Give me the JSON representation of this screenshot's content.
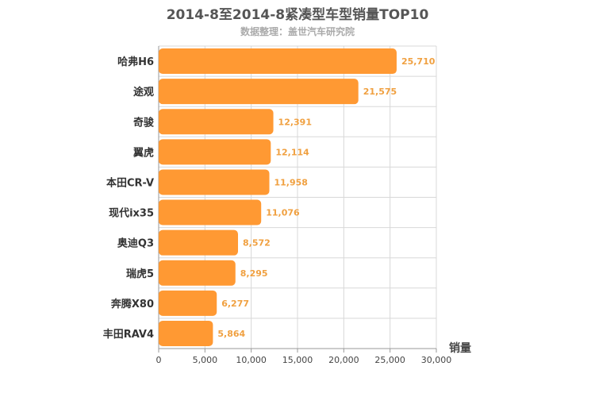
{
  "chart_data": {
    "type": "bar",
    "orientation": "horizontal",
    "title": "2014-8至2014-8紧凑型车型销量TOP10",
    "subtitle": "数据整理：盖世汽车研究院",
    "xlabel": "销量",
    "ylabel": "",
    "categories": [
      "哈弗H6",
      "途观",
      "奇骏",
      "翼虎",
      "本田CR-V",
      "现代ix35",
      "奥迪Q3",
      "瑞虎5",
      "奔腾X80",
      "丰田RAV4"
    ],
    "values": [
      25710,
      21575,
      12391,
      12114,
      11958,
      11076,
      8572,
      8295,
      6277,
      5864
    ],
    "value_labels": [
      "25,710",
      "21,575",
      "12,391",
      "12,114",
      "11,958",
      "11,076",
      "8,572",
      "8,295",
      "6,277",
      "5,864"
    ],
    "xlim": [
      0,
      30000
    ],
    "xticks": [
      0,
      5000,
      10000,
      15000,
      20000,
      25000,
      30000
    ],
    "xtick_labels": [
      "0",
      "5,000",
      "10,000",
      "15,000",
      "20,000",
      "25,000",
      "30,000"
    ],
    "grid": true,
    "bar_color": "#FF9933",
    "label_color": "#F0A040"
  }
}
